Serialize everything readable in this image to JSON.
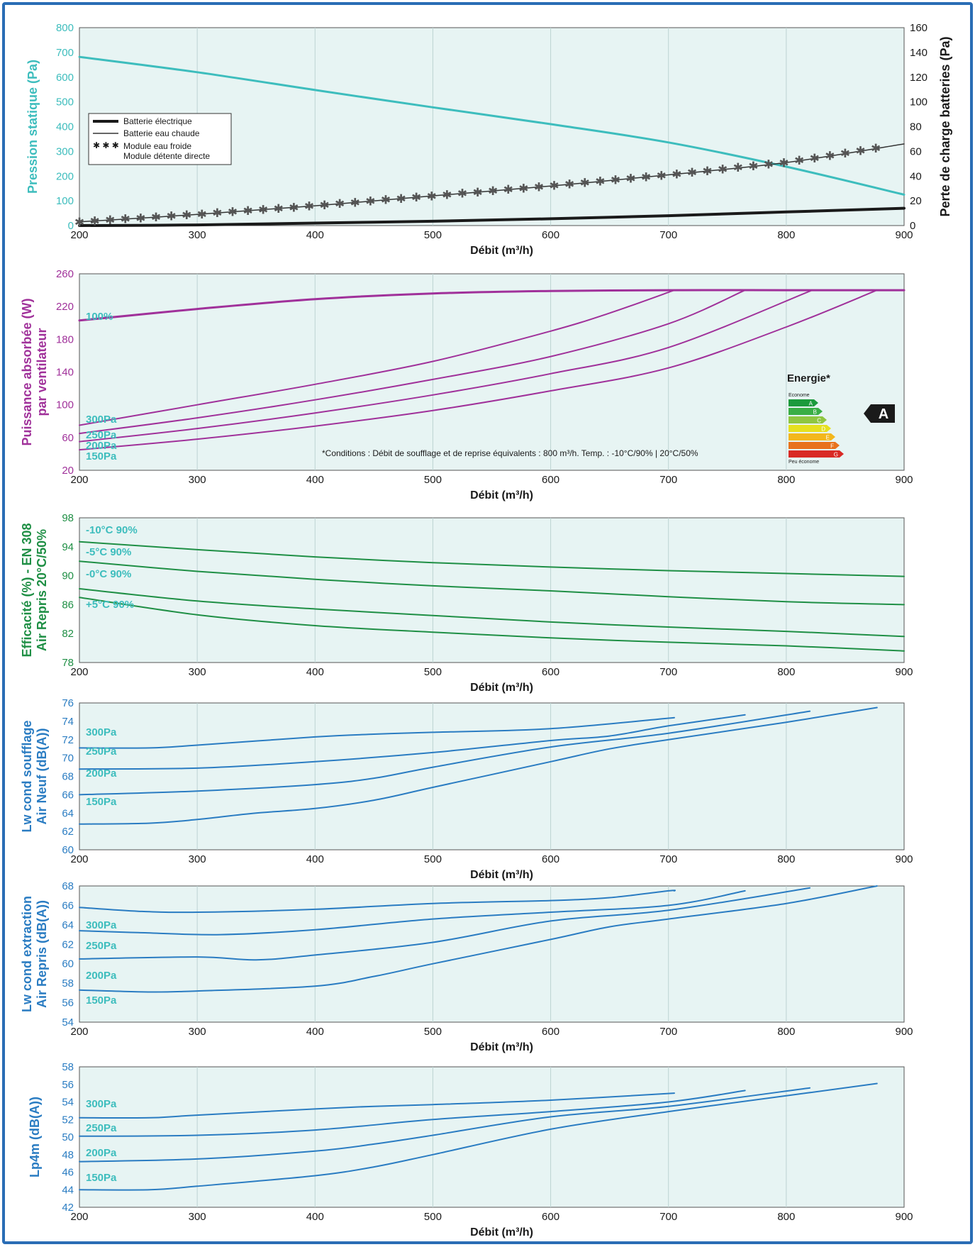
{
  "chart_data": [
    {
      "type": "line",
      "xlabel": "Débit (m³/h)",
      "ylabel": "Pression statique (Pa)",
      "ylabel2": "Perte de charge batteries (Pa)",
      "xlim": [
        200,
        900
      ],
      "ylim": [
        0,
        800
      ],
      "ylim2": [
        0,
        160
      ],
      "xticks": [
        200,
        300,
        400,
        500,
        600,
        700,
        800,
        900
      ],
      "yticks": [
        0,
        100,
        200,
        300,
        400,
        500,
        600,
        700,
        800
      ],
      "yticks2": [
        0,
        20,
        40,
        60,
        80,
        100,
        120,
        140,
        160
      ],
      "ylabel_color": "#3dbdbd",
      "ylabel2_color": "#1a1a1a",
      "legend": {
        "placement": "upper-left",
        "entries": [
          "Batterie électrique",
          "Batterie eau chaude",
          "Module eau froide",
          "Module détente directe"
        ]
      },
      "series": [
        {
          "axis": "left",
          "style": "line",
          "color": "#3dbdbd",
          "width": 3,
          "x": [
            200,
            300,
            400,
            500,
            600,
            700,
            800,
            900
          ],
          "y": [
            682,
            620,
            548,
            478,
            410,
            336,
            238,
            125
          ]
        },
        {
          "axis": "right",
          "style": "line",
          "color": "#1a1a1a",
          "width": 4,
          "legend": 0,
          "x": [
            200,
            300,
            400,
            500,
            600,
            700,
            800,
            900
          ],
          "y": [
            0,
            0.5,
            2,
            3.5,
            5.5,
            8,
            11,
            14
          ]
        },
        {
          "axis": "right",
          "style": "line",
          "color": "#333333",
          "width": 1.5,
          "legend": 1,
          "x": [
            200,
            300,
            400,
            500,
            600,
            700,
            800,
            900
          ],
          "y": [
            3,
            9,
            16,
            24,
            32,
            41,
            51,
            66
          ]
        },
        {
          "axis": "right",
          "style": "markers",
          "marker": "✱",
          "color": "#555555",
          "legend": 2,
          "x": [
            200,
            300,
            400,
            500,
            600,
            700,
            800,
            880
          ],
          "y": [
            3,
            9,
            16,
            24,
            32,
            41,
            51,
            63
          ]
        }
      ]
    },
    {
      "type": "line",
      "xlabel": "Débit (m³/h)",
      "ylabel": [
        "Puissance absorbée (W)",
        "par ventilateur"
      ],
      "xlim": [
        200,
        900
      ],
      "ylim": [
        20,
        260
      ],
      "xticks": [
        200,
        300,
        400,
        500,
        600,
        700,
        800,
        900
      ],
      "yticks": [
        20,
        60,
        100,
        140,
        180,
        220,
        260
      ],
      "ylabel_color": "#a0319a",
      "label_color": "#3dbdbd",
      "series": [
        {
          "name": "100%",
          "color": "#a0319a",
          "width": 3,
          "x": [
            200,
            300,
            400,
            500,
            600,
            700,
            800,
            900
          ],
          "y": [
            203,
            217,
            229,
            236,
            239,
            240,
            240,
            240
          ]
        },
        {
          "name": "300Pa",
          "color": "#a0319a",
          "width": 2,
          "x": [
            200,
            300,
            400,
            500,
            600,
            650,
            705
          ],
          "y": [
            75,
            100,
            125,
            153,
            190,
            212,
            240
          ]
        },
        {
          "name": "250Pa",
          "color": "#a0319a",
          "width": 2,
          "x": [
            200,
            300,
            400,
            500,
            600,
            700,
            765
          ],
          "y": [
            65,
            84,
            106,
            131,
            159,
            199,
            240
          ]
        },
        {
          "name": "200Pa",
          "color": "#a0319a",
          "width": 2,
          "x": [
            200,
            300,
            400,
            500,
            600,
            700,
            822
          ],
          "y": [
            55,
            71,
            90,
            112,
            138,
            170,
            240
          ]
        },
        {
          "name": "150Pa",
          "color": "#a0319a",
          "width": 2,
          "x": [
            200,
            300,
            400,
            500,
            600,
            700,
            800,
            877
          ],
          "y": [
            45,
            58,
            74,
            93,
            117,
            145,
            195,
            240
          ]
        }
      ],
      "annotations": {
        "energy_title": "Energie*",
        "energy_top": "Econome",
        "energy_bottom": "Peu économe",
        "energy_classes": [
          "A",
          "B",
          "C",
          "D",
          "E",
          "F",
          "G"
        ],
        "energy_colors": [
          "#1b9a3c",
          "#3aae45",
          "#8fc641",
          "#e6e01f",
          "#f3b71c",
          "#e8721d",
          "#d92a25"
        ],
        "energy_rating": "A",
        "note": "*Conditions : Débit de soufflage et de reprise équivalents : 800 m³/h. Temp. : -10°C/90% | 20°C/50%"
      }
    },
    {
      "type": "line",
      "xlabel": "Débit (m³/h)",
      "ylabel": [
        "Efficacité (%) - EN 308",
        "Air Repris 20°C/50%"
      ],
      "xlim": [
        200,
        900
      ],
      "ylim": [
        78,
        98
      ],
      "xticks": [
        200,
        300,
        400,
        500,
        600,
        700,
        800,
        900
      ],
      "yticks": [
        78,
        82,
        86,
        90,
        94,
        98
      ],
      "ylabel_color": "#1f8f45",
      "label_color": "#3dbdbd",
      "series": [
        {
          "name": "-10°C 90%",
          "color": "#1f8f45",
          "width": 2,
          "x": [
            200,
            300,
            400,
            500,
            600,
            700,
            800,
            900
          ],
          "y": [
            94.7,
            93.6,
            92.6,
            91.8,
            91.2,
            90.7,
            90.3,
            89.9
          ]
        },
        {
          "name": "-5°C 90%",
          "color": "#1f8f45",
          "width": 2,
          "x": [
            200,
            300,
            400,
            500,
            600,
            700,
            800,
            900
          ],
          "y": [
            92.0,
            90.6,
            89.5,
            88.6,
            87.9,
            87.1,
            86.4,
            86.0
          ]
        },
        {
          "name": "-0°C 90%",
          "color": "#1f8f45",
          "width": 2,
          "x": [
            200,
            300,
            400,
            500,
            600,
            700,
            800,
            900
          ],
          "y": [
            88.2,
            86.5,
            85.4,
            84.5,
            83.6,
            82.9,
            82.3,
            81.6
          ]
        },
        {
          "name": "+5°C 90%",
          "color": "#1f8f45",
          "width": 2,
          "x": [
            200,
            300,
            400,
            500,
            600,
            700,
            800,
            900
          ],
          "y": [
            87.0,
            84.6,
            83.1,
            82.2,
            81.4,
            80.8,
            80.3,
            79.6
          ]
        }
      ]
    },
    {
      "type": "line",
      "xlabel": "Débit (m³/h)",
      "ylabel": [
        "Lw cond soufflage",
        "Air Neuf (dB(A))"
      ],
      "xlim": [
        200,
        900
      ],
      "ylim": [
        60,
        76
      ],
      "xticks": [
        200,
        300,
        400,
        500,
        600,
        700,
        800,
        900
      ],
      "yticks": [
        60,
        62,
        64,
        66,
        68,
        70,
        72,
        74,
        76
      ],
      "ylabel_color": "#2a7cc2",
      "label_color": "#3dbdbd",
      "series": [
        {
          "name": "300Pa",
          "color": "#2a7cc2",
          "width": 2,
          "x": [
            200,
            260,
            300,
            400,
            450,
            500,
            600,
            705
          ],
          "y": [
            71.1,
            71.1,
            71.4,
            72.3,
            72.6,
            72.8,
            73.2,
            74.4
          ]
        },
        {
          "name": "250Pa",
          "color": "#2a7cc2",
          "width": 2,
          "x": [
            200,
            300,
            400,
            500,
            600,
            650,
            700,
            765
          ],
          "y": [
            68.8,
            68.9,
            69.6,
            70.6,
            71.9,
            72.4,
            73.5,
            74.7
          ]
        },
        {
          "name": "200Pa",
          "color": "#2a7cc2",
          "width": 2,
          "x": [
            200,
            300,
            400,
            450,
            500,
            600,
            700,
            820
          ],
          "y": [
            66.0,
            66.4,
            67.1,
            67.8,
            69.0,
            71.2,
            72.7,
            75.1
          ]
        },
        {
          "name": "150Pa",
          "color": "#2a7cc2",
          "width": 2,
          "x": [
            200,
            260,
            300,
            350,
            400,
            450,
            500,
            600,
            650,
            700,
            800,
            877
          ],
          "y": [
            62.8,
            62.9,
            63.3,
            64.0,
            64.5,
            65.4,
            66.8,
            69.6,
            71.0,
            72.0,
            73.9,
            75.5
          ]
        }
      ]
    },
    {
      "type": "line",
      "xlabel": "Débit (m³/h)",
      "ylabel": [
        "Lw cond extraction",
        "Air Repris (dB(A))"
      ],
      "xlim": [
        200,
        900
      ],
      "ylim": [
        54,
        68
      ],
      "xticks": [
        200,
        300,
        400,
        500,
        600,
        700,
        800,
        900
      ],
      "yticks": [
        54,
        56,
        58,
        60,
        62,
        64,
        66,
        68
      ],
      "ylabel_color": "#2a7cc2",
      "label_color": "#3dbdbd",
      "series": [
        {
          "name": "300Pa",
          "color": "#2a7cc2",
          "width": 2,
          "x": [
            200,
            250,
            300,
            400,
            500,
            600,
            650,
            700,
            705
          ],
          "y": [
            65.8,
            65.4,
            65.3,
            65.6,
            66.2,
            66.5,
            66.8,
            67.5,
            67.5
          ]
        },
        {
          "name": "250Pa",
          "color": "#2a7cc2",
          "width": 2,
          "x": [
            200,
            250,
            320,
            400,
            500,
            600,
            700,
            765
          ],
          "y": [
            63.4,
            63.2,
            63.0,
            63.5,
            64.6,
            65.3,
            66.0,
            67.5
          ]
        },
        {
          "name": "200Pa",
          "color": "#2a7cc2",
          "width": 2,
          "x": [
            200,
            300,
            350,
            400,
            500,
            600,
            700,
            820
          ],
          "y": [
            60.5,
            60.7,
            60.4,
            60.9,
            62.2,
            64.4,
            65.5,
            67.8
          ]
        },
        {
          "name": "150Pa",
          "color": "#2a7cc2",
          "width": 2,
          "x": [
            200,
            260,
            300,
            400,
            450,
            500,
            600,
            650,
            700,
            800,
            877
          ],
          "y": [
            57.3,
            57.1,
            57.2,
            57.7,
            58.7,
            60.0,
            62.5,
            63.8,
            64.6,
            66.2,
            68.0
          ]
        }
      ]
    },
    {
      "type": "line",
      "xlabel": "Débit (m³/h)",
      "ylabel": [
        "Lp4m (dB(A))"
      ],
      "xlim": [
        200,
        900
      ],
      "ylim": [
        42,
        58
      ],
      "xticks": [
        200,
        300,
        400,
        500,
        600,
        700,
        800,
        900
      ],
      "yticks": [
        42,
        44,
        46,
        48,
        50,
        52,
        54,
        56,
        58
      ],
      "ylabel_color": "#2a7cc2",
      "label_color": "#3dbdbd",
      "series": [
        {
          "name": "300Pa",
          "color": "#2a7cc2",
          "width": 2,
          "x": [
            200,
            260,
            300,
            400,
            450,
            500,
            600,
            705
          ],
          "y": [
            52.2,
            52.2,
            52.5,
            53.2,
            53.5,
            53.7,
            54.2,
            55.0
          ]
        },
        {
          "name": "250Pa",
          "color": "#2a7cc2",
          "width": 2,
          "x": [
            200,
            300,
            400,
            500,
            600,
            700,
            765
          ],
          "y": [
            50.1,
            50.2,
            50.8,
            52.0,
            52.9,
            54.0,
            55.3
          ]
        },
        {
          "name": "200Pa",
          "color": "#2a7cc2",
          "width": 2,
          "x": [
            200,
            300,
            400,
            450,
            500,
            600,
            700,
            820
          ],
          "y": [
            47.2,
            47.5,
            48.4,
            49.2,
            50.2,
            52.3,
            53.5,
            55.6
          ]
        },
        {
          "name": "150Pa",
          "color": "#2a7cc2",
          "width": 2,
          "x": [
            200,
            260,
            300,
            400,
            450,
            500,
            600,
            700,
            800,
            877
          ],
          "y": [
            44.0,
            44.0,
            44.4,
            45.6,
            46.6,
            48.0,
            50.9,
            52.9,
            54.7,
            56.1
          ]
        }
      ]
    }
  ]
}
